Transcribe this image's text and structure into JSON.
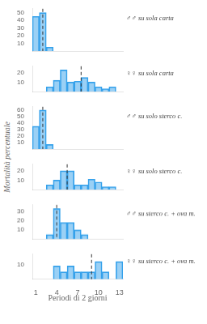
{
  "chart_data": [
    {
      "type": "bar",
      "title": "♂♂ su sola carta",
      "x": [
        1,
        2,
        3
      ],
      "values": [
        45,
        50,
        5
      ],
      "xlim": [
        0.5,
        13.5
      ],
      "ylim": [
        0,
        55
      ],
      "yticks": [
        10,
        20,
        30,
        40,
        50
      ],
      "dashed_x": 2.0,
      "grid": false,
      "tick_labels": "y"
    },
    {
      "type": "bar",
      "title": "♀♀ su sola carta",
      "x": [
        3,
        4,
        5,
        6,
        7,
        8,
        9,
        10,
        11,
        12
      ],
      "values": [
        5,
        12,
        23,
        10,
        11,
        15,
        10,
        5,
        3,
        5
      ],
      "xlim": [
        0.5,
        13.5
      ],
      "ylim": [
        0,
        27
      ],
      "yticks": [
        10,
        20
      ],
      "dashed_x": 7.5,
      "grid": false,
      "tick_labels": "y"
    },
    {
      "type": "bar",
      "title": "♂♂ su solo sterco c.",
      "x": [
        1,
        2,
        3
      ],
      "values": [
        35,
        60,
        7
      ],
      "xlim": [
        0.5,
        13.5
      ],
      "ylim": [
        0,
        65
      ],
      "yticks": [
        10,
        20,
        30,
        40,
        50,
        60
      ],
      "dashed_x": 2.0,
      "ylabel": "Mortalità  percentuale",
      "grid": false,
      "tick_labels": "y"
    },
    {
      "type": "bar",
      "title": "♀♀ su solo sterco c.",
      "x": [
        3,
        4,
        5,
        6,
        7,
        8,
        9,
        10,
        11,
        12
      ],
      "values": [
        5,
        10,
        20,
        20,
        5,
        5,
        11,
        8,
        3,
        3
      ],
      "xlim": [
        0.5,
        13.5
      ],
      "ylim": [
        0,
        27
      ],
      "yticks": [
        10,
        20
      ],
      "dashed_x": 5.5,
      "grid": false,
      "tick_labels": "y"
    },
    {
      "type": "bar",
      "title": "♂♂ su sterco c. + ova m.",
      "x": [
        3,
        4,
        5,
        6,
        7,
        8
      ],
      "values": [
        5,
        33,
        18,
        18,
        10,
        5
      ],
      "xlim": [
        0.5,
        13.5
      ],
      "ylim": [
        0,
        37
      ],
      "yticks": [
        10,
        20,
        30
      ],
      "dashed_x": 4.0,
      "grid": false,
      "tick_labels": "y"
    },
    {
      "type": "bar",
      "title": "♀♀ su sterco c. + ova m.",
      "x": [
        4,
        5,
        6,
        7,
        8,
        9,
        10,
        11,
        13
      ],
      "values": [
        9,
        5,
        9,
        5,
        5,
        5,
        12,
        5,
        12
      ],
      "xlim": [
        0.5,
        13.5
      ],
      "ylim": [
        0,
        17
      ],
      "yticks": [
        10
      ],
      "dashed_x": 9.0,
      "xticks": [
        1,
        4,
        7,
        10,
        13
      ],
      "xlabel": "Periodi di 2 giorni",
      "grid": false
    }
  ]
}
